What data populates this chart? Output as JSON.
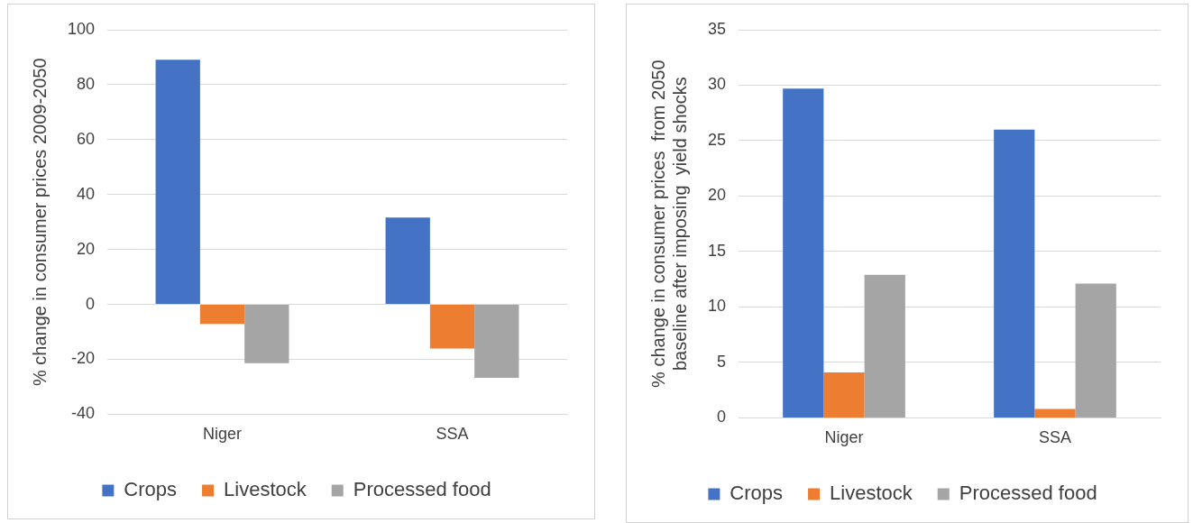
{
  "chart_data": [
    {
      "type": "bar",
      "ylabel": "% change in consumer prices 2009-2050",
      "categories": [
        "Niger",
        "SSA"
      ],
      "series": [
        {
          "name": "Crops",
          "color": "#4472c4",
          "values": [
            89.1,
            31.6
          ]
        },
        {
          "name": "Livestock",
          "color": "#ed7d31",
          "values": [
            -7.1,
            -16.1
          ]
        },
        {
          "name": "Processed food",
          "color": "#a5a5a5",
          "values": [
            -21.4,
            -26.7
          ]
        }
      ],
      "ylim": [
        -40,
        100
      ],
      "yticks": [
        -40,
        -20,
        0,
        20,
        40,
        60,
        80,
        100
      ],
      "grid": "y",
      "legend": "bottom"
    },
    {
      "type": "bar",
      "ylabel": "% change in consumer prices  from 2050\nbaseline after imposing  yield shocks",
      "categories": [
        "Niger",
        "SSA"
      ],
      "series": [
        {
          "name": "Crops",
          "color": "#4472c4",
          "values": [
            29.7,
            26.0
          ]
        },
        {
          "name": "Livestock",
          "color": "#ed7d31",
          "values": [
            4.1,
            0.8
          ]
        },
        {
          "name": "Processed food",
          "color": "#a5a5a5",
          "values": [
            12.9,
            12.1
          ]
        }
      ],
      "ylim": [
        0,
        35
      ],
      "yticks": [
        0,
        5,
        10,
        15,
        20,
        25,
        30,
        35
      ],
      "grid": "y",
      "legend": "bottom"
    }
  ]
}
